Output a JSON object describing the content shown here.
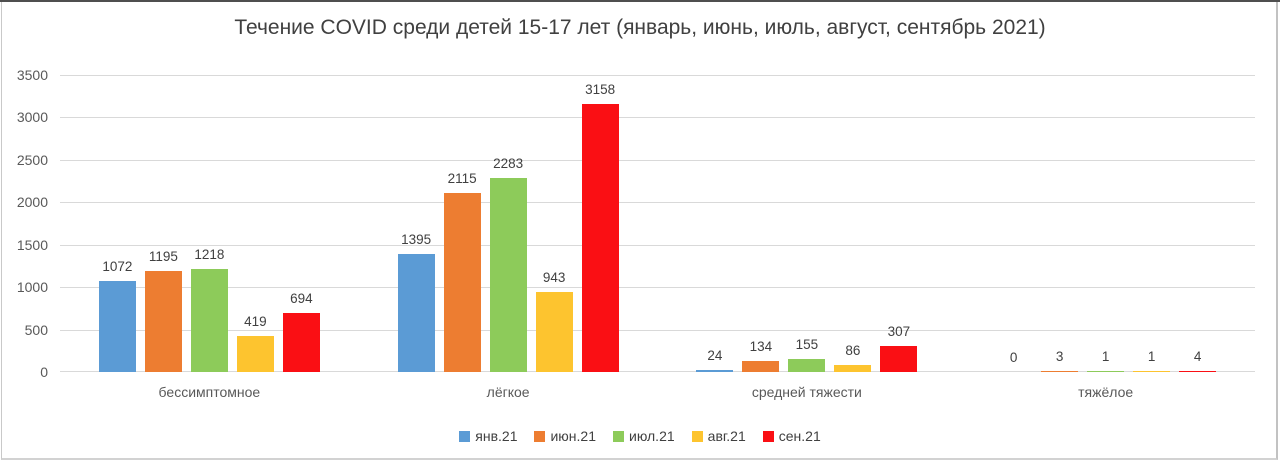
{
  "chart_data": {
    "type": "bar",
    "title": "Течение COVID среди детей 15-17 лет (январь, июнь, июль, август, сентябрь 2021)",
    "categories": [
      "бессимптомное",
      "лёгкое",
      "средней тяжести",
      "тяжёлое"
    ],
    "series": [
      {
        "name": "янв.21",
        "color": "#5B9BD5",
        "values": [
          1072,
          1395,
          24,
          0
        ]
      },
      {
        "name": "июн.21",
        "color": "#ED7D31",
        "values": [
          1195,
          2115,
          134,
          3
        ]
      },
      {
        "name": "июл.21",
        "color": "#8DCB5A",
        "values": [
          1218,
          2283,
          155,
          1
        ]
      },
      {
        "name": "авг.21",
        "color": "#FDC42F",
        "values": [
          419,
          943,
          86,
          1
        ]
      },
      {
        "name": "сен.21",
        "color": "#FA0F14",
        "values": [
          694,
          3158,
          307,
          4
        ]
      }
    ],
    "yticks": [
      0,
      500,
      1000,
      1500,
      2000,
      2500,
      3000,
      3500
    ],
    "ylim": [
      0,
      3500
    ],
    "grid": true,
    "data_labels": true,
    "legend_position": "bottom",
    "colors": {
      "gridline": "#d9d9d9",
      "axis_text": "#595959",
      "label_text": "#404040",
      "title_text": "#404040"
    }
  }
}
